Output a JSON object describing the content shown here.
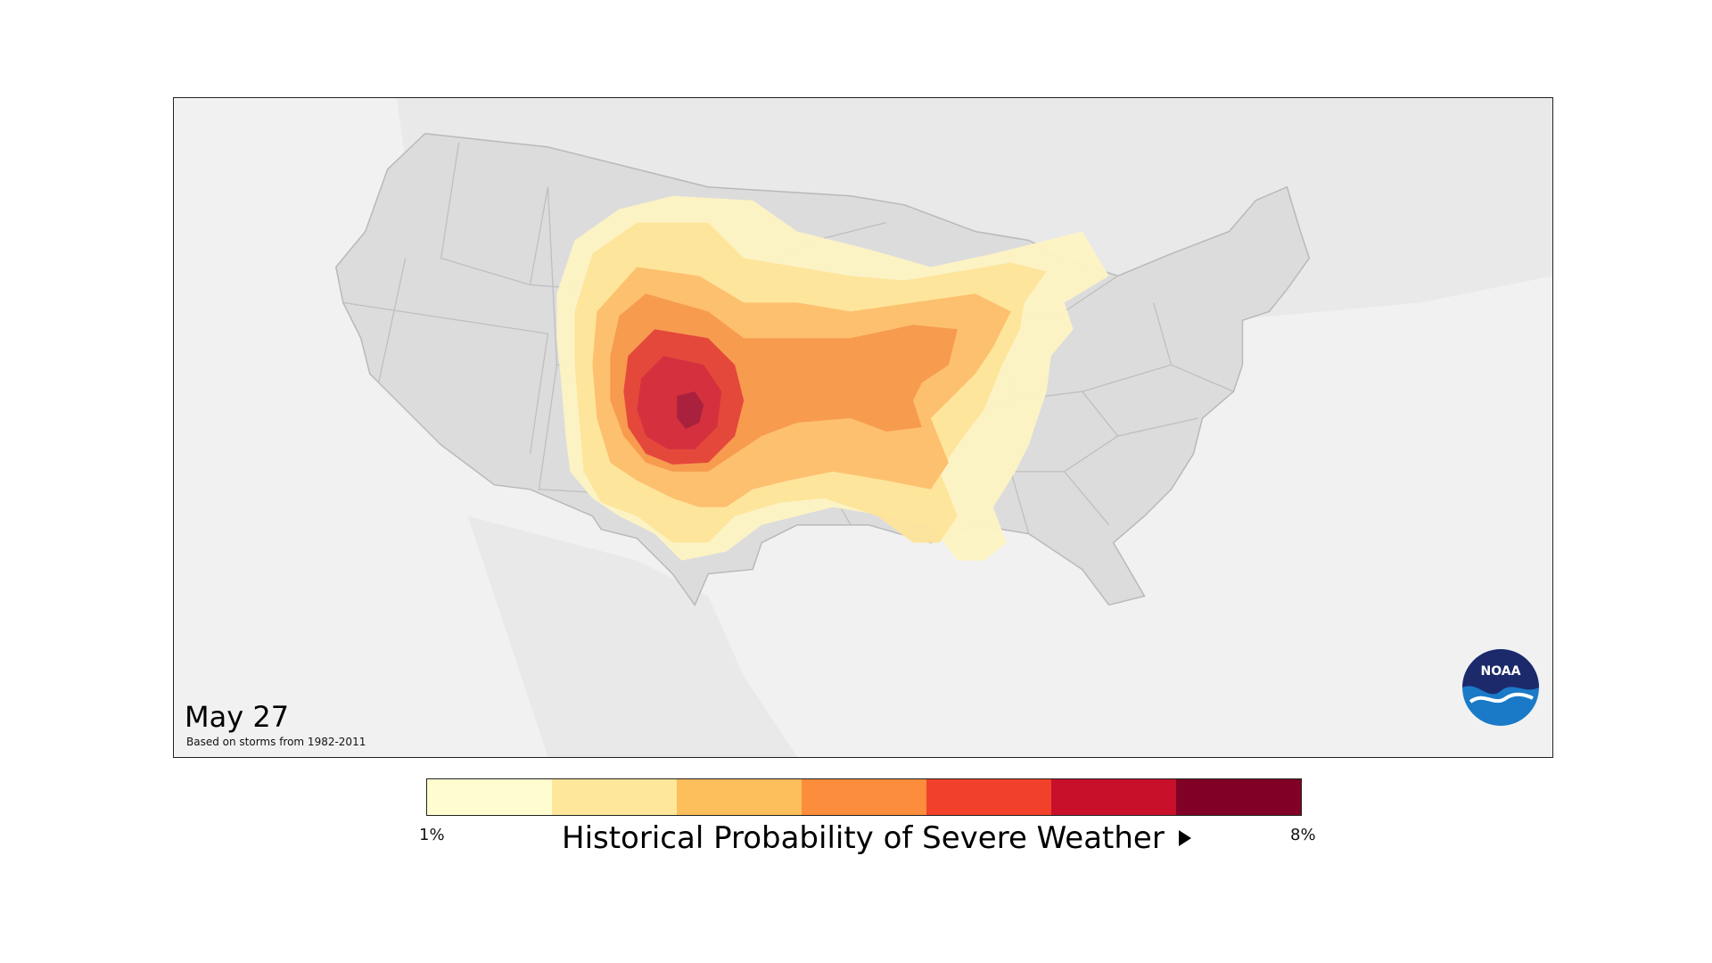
{
  "date": "May 27",
  "source_note": "Based on storms from 1982-2011",
  "logo_text": "NOAA",
  "legend": {
    "title": "Historical Probability of Severe Weather",
    "min_label": "1%",
    "max_label": "8%",
    "colors": [
      "#fffdd0",
      "#fee79a",
      "#fdbe5c",
      "#fc8d3c",
      "#f2412a",
      "#c9102a",
      "#800026"
    ]
  },
  "map_colors": {
    "background": "#f1f1f1",
    "land": "#dcdcdc",
    "land_outer": "#e7e7e7",
    "border": "#b0b0b0"
  }
}
